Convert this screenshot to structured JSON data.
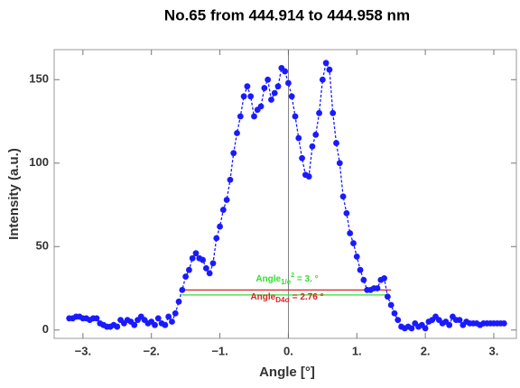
{
  "chart_data": {
    "type": "line",
    "title": "No.65  from 444.914 to 444.958 nm",
    "x_label": "Angle [°]",
    "y_label": "Intensity (a.u.)",
    "xlim": [
      -3.42,
      3.33
    ],
    "ylim": [
      -5,
      168
    ],
    "xticks": [
      {
        "value": -3,
        "label": "−3."
      },
      {
        "value": -2,
        "label": "−2."
      },
      {
        "value": -1,
        "label": "−1."
      },
      {
        "value": 0,
        "label": "0."
      },
      {
        "value": 1,
        "label": "1."
      },
      {
        "value": 2,
        "label": "2."
      },
      {
        "value": 3,
        "label": "3."
      }
    ],
    "yticks": [
      0,
      50,
      100,
      150
    ],
    "x": [
      -3.2,
      -3.15,
      -3.1,
      -3.05,
      -3.0,
      -2.95,
      -2.9,
      -2.85,
      -2.8,
      -2.75,
      -2.7,
      -2.65,
      -2.6,
      -2.55,
      -2.5,
      -2.45,
      -2.4,
      -2.35,
      -2.3,
      -2.25,
      -2.2,
      -2.15,
      -2.1,
      -2.05,
      -2.0,
      -1.95,
      -1.9,
      -1.85,
      -1.8,
      -1.75,
      -1.7,
      -1.65,
      -1.6,
      -1.55,
      -1.5,
      -1.45,
      -1.4,
      -1.35,
      -1.3,
      -1.25,
      -1.2,
      -1.15,
      -1.1,
      -1.05,
      -1.0,
      -0.95,
      -0.9,
      -0.85,
      -0.8,
      -0.75,
      -0.7,
      -0.65,
      -0.6,
      -0.55,
      -0.5,
      -0.45,
      -0.4,
      -0.35,
      -0.3,
      -0.25,
      -0.2,
      -0.15,
      -0.1,
      -0.05,
      0.0,
      0.05,
      0.1,
      0.15,
      0.2,
      0.25,
      0.3,
      0.35,
      0.4,
      0.45,
      0.5,
      0.55,
      0.6,
      0.65,
      0.7,
      0.75,
      0.8,
      0.85,
      0.9,
      0.95,
      1.0,
      1.05,
      1.1,
      1.15,
      1.2,
      1.25,
      1.3,
      1.35,
      1.4,
      1.45,
      1.5,
      1.55,
      1.6,
      1.65,
      1.7,
      1.75,
      1.8,
      1.85,
      1.9,
      1.95,
      2.0,
      2.05,
      2.1,
      2.15,
      2.2,
      2.25,
      2.3,
      2.35,
      2.4,
      2.45,
      2.5,
      2.55,
      2.6,
      2.65,
      2.7,
      2.75,
      2.8,
      2.85,
      2.9,
      2.95,
      3.0,
      3.05,
      3.1,
      3.15
    ],
    "series": [
      {
        "color": "#1a1aff",
        "values": [
          7,
          7,
          8,
          8,
          7,
          7,
          6,
          7,
          7,
          4,
          3,
          2,
          2,
          3,
          2,
          6,
          4,
          6,
          5,
          3,
          6,
          8,
          6,
          4,
          5,
          3,
          7,
          4,
          3,
          8,
          5,
          10,
          17,
          24,
          32,
          36,
          43,
          46,
          43,
          42,
          37,
          34,
          40,
          55,
          62,
          72,
          78,
          90,
          106,
          118,
          128,
          140,
          146,
          140,
          128,
          132,
          134,
          145,
          150,
          138,
          142,
          146,
          157,
          155,
          148,
          140,
          128,
          115,
          103,
          93,
          92,
          110,
          117,
          130,
          150,
          160,
          156,
          130,
          112,
          100,
          80,
          70,
          58,
          52,
          44,
          36,
          30,
          24,
          24,
          25,
          25,
          30,
          31,
          20,
          15,
          10,
          6,
          2,
          1,
          2,
          1,
          4,
          2,
          3,
          1,
          5,
          6,
          8,
          6,
          4,
          5,
          3,
          8,
          6,
          6,
          3,
          5,
          4,
          4,
          4,
          3,
          4,
          4,
          4,
          4,
          4,
          4,
          4
        ]
      }
    ],
    "reference_lines": [
      {
        "y": 24,
        "x": [
          -1.55,
          1.5
        ],
        "color": "#dd2222"
      },
      {
        "y": 21,
        "x": [
          -1.55,
          1.45
        ],
        "color": "#33dd33"
      }
    ],
    "annotations": [
      {
        "text": "Angle",
        "subscript": "1/e",
        "superscript": "2",
        "suffix": " = 3. °",
        "color": "#33dd33"
      },
      {
        "text": "Angle",
        "subscript": "D4σ",
        "suffix": " = 2.76 °",
        "color": "#dd2222"
      }
    ]
  }
}
